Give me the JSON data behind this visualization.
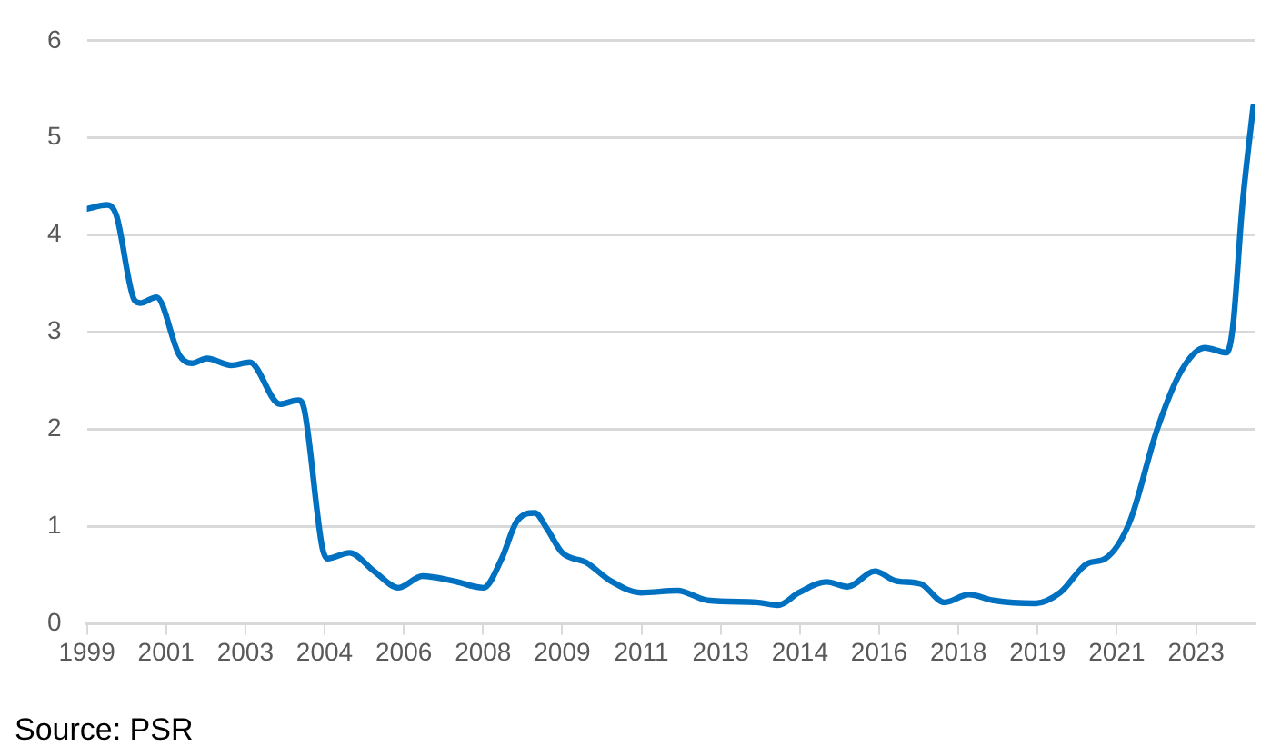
{
  "chart_data": {
    "type": "line",
    "x": [
      1999.5,
      1999.92,
      2000.11,
      2000.49,
      2000.61,
      2000.95,
      2001.43,
      2001.69,
      2002.0,
      2002.51,
      2002.89,
      2003.52,
      2003.9,
      2004.03,
      2004.4,
      2004.51,
      2004.97,
      2005.48,
      2005.99,
      2006.49,
      2007.13,
      2007.76,
      2008.14,
      2008.45,
      2008.83,
      2009.08,
      2009.4,
      2009.9,
      2010.41,
      2011.04,
      2011.8,
      2012.43,
      2013.45,
      2013.89,
      2014.33,
      2014.9,
      2015.34,
      2015.91,
      2016.35,
      2016.86,
      2017.36,
      2017.87,
      2018.38,
      2019.26,
      2019.77,
      2020.34,
      2020.71,
      2021.22,
      2021.79,
      2022.29,
      2022.78,
      2023.24,
      2023.37,
      2023.56,
      2023.79
    ],
    "series": [
      {
        "color": "#0070c0",
        "values": [
          4.27,
          4.31,
          4.21,
          3.33,
          3.3,
          3.36,
          2.76,
          2.68,
          2.73,
          2.66,
          2.69,
          2.26,
          2.3,
          2.2,
          0.79,
          0.67,
          0.73,
          0.54,
          0.37,
          0.49,
          0.44,
          0.37,
          0.67,
          1.05,
          1.14,
          0.98,
          0.73,
          0.63,
          0.44,
          0.32,
          0.34,
          0.24,
          0.22,
          0.19,
          0.32,
          0.43,
          0.38,
          0.54,
          0.44,
          0.41,
          0.22,
          0.3,
          0.24,
          0.21,
          0.32,
          0.62,
          0.67,
          1.05,
          2.0,
          2.6,
          2.84,
          2.79,
          3.07,
          4.28,
          5.32
        ]
      }
    ],
    "xlim": [
      1999.5,
      2023.82
    ],
    "xticks": [
      {
        "value": 1999.5,
        "label": "1999"
      },
      {
        "value": 2001.15,
        "label": "2001"
      },
      {
        "value": 2002.8,
        "label": "2003"
      },
      {
        "value": 2004.45,
        "label": "2004"
      },
      {
        "value": 2006.1,
        "label": "2006"
      },
      {
        "value": 2007.75,
        "label": "2008"
      },
      {
        "value": 2009.4,
        "label": "2009"
      },
      {
        "value": 2011.05,
        "label": "2011"
      },
      {
        "value": 2012.7,
        "label": "2013"
      },
      {
        "value": 2014.35,
        "label": "2014"
      },
      {
        "value": 2016.0,
        "label": "2016"
      },
      {
        "value": 2017.65,
        "label": "2018"
      },
      {
        "value": 2019.3,
        "label": "2019"
      },
      {
        "value": 2020.95,
        "label": "2021"
      },
      {
        "value": 2022.6,
        "label": "2023"
      }
    ],
    "ylim": [
      0,
      6
    ],
    "yticks": [
      0,
      1,
      2,
      3,
      4,
      5,
      6
    ],
    "grid": "y",
    "legend": false,
    "marker": "none",
    "line_style": "solid",
    "annotations": [
      "Source: PSR"
    ]
  }
}
